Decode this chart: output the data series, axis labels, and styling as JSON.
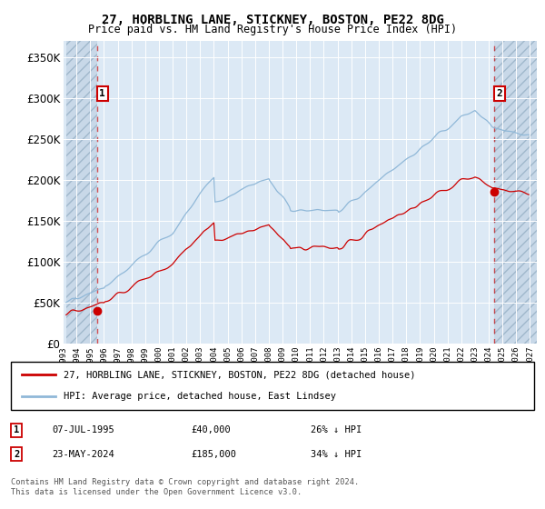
{
  "title": "27, HORBLING LANE, STICKNEY, BOSTON, PE22 8DG",
  "subtitle": "Price paid vs. HM Land Registry's House Price Index (HPI)",
  "legend_line1": "27, HORBLING LANE, STICKNEY, BOSTON, PE22 8DG (detached house)",
  "legend_line2": "HPI: Average price, detached house, East Lindsey",
  "annotation1_date": "07-JUL-1995",
  "annotation1_price": "£40,000",
  "annotation1_hpi": "26% ↓ HPI",
  "annotation2_date": "23-MAY-2024",
  "annotation2_price": "£185,000",
  "annotation2_hpi": "34% ↓ HPI",
  "footnote": "Contains HM Land Registry data © Crown copyright and database right 2024.\nThis data is licensed under the Open Government Licence v3.0.",
  "price_color": "#cc0000",
  "hpi_color": "#90b8d8",
  "background_plot": "#dce9f5",
  "background_hatch": "#c8d8e8",
  "ylim": [
    0,
    370000
  ],
  "xlim_start": 1993.25,
  "xlim_end": 2027.5,
  "sale1_x": 1995.52,
  "sale1_y": 40000,
  "sale2_x": 2024.4,
  "sale2_y": 185000
}
